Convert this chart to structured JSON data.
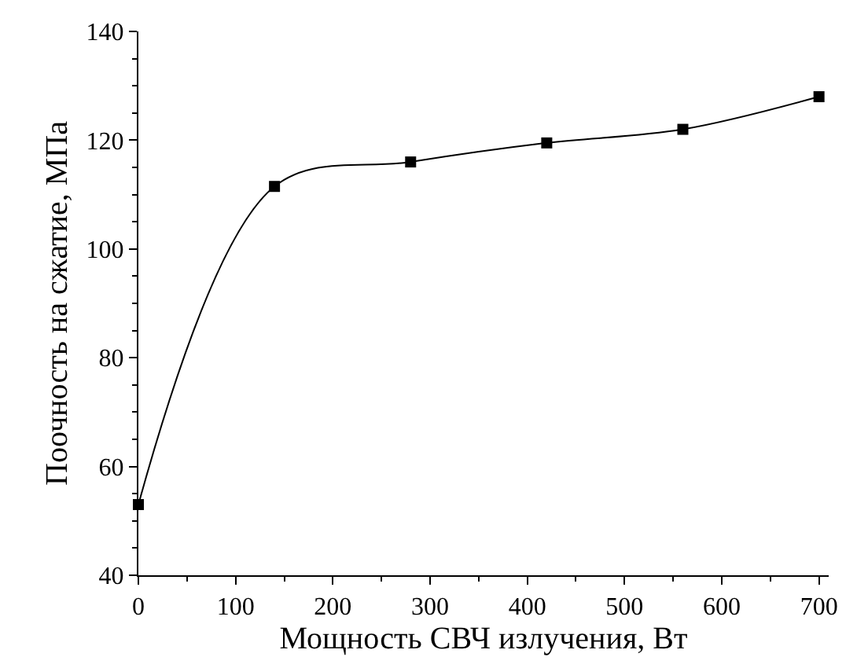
{
  "chart_data": {
    "type": "line",
    "xlabel": "Мощность СВЧ излучения, Вт",
    "ylabel": "Поочность на сжатие, МПа",
    "x": [
      0,
      140,
      280,
      420,
      560,
      700
    ],
    "series": [
      {
        "color": "#000000",
        "values": [
          53,
          111.5,
          116,
          119.5,
          122,
          128
        ]
      }
    ],
    "xlim": [
      0,
      710
    ],
    "xticks": [
      0,
      100,
      200,
      300,
      400,
      500,
      600,
      700
    ],
    "ylim": [
      40,
      140
    ],
    "yticks": [
      40,
      60,
      80,
      100,
      120,
      140
    ],
    "marker": "square",
    "line_style": "solid"
  }
}
